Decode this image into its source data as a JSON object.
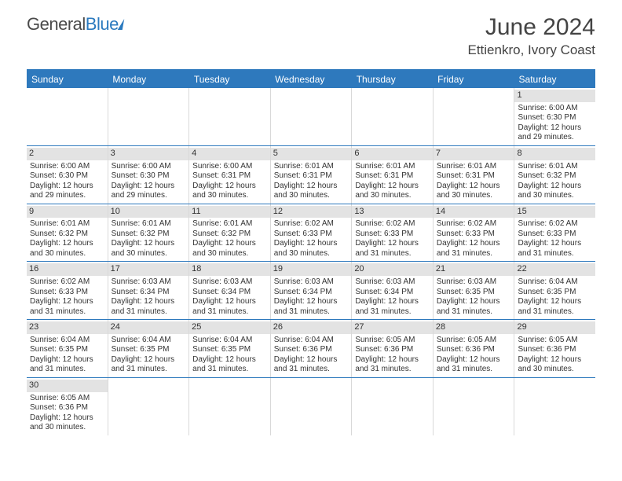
{
  "logo": {
    "text_a": "General",
    "text_b": "Blue"
  },
  "header": {
    "title": "June 2024",
    "location": "Ettienkro, Ivory Coast"
  },
  "colors": {
    "brand": "#2e79bd",
    "daynum_bg": "#e3e3e3",
    "text": "#333333"
  },
  "weekdays": [
    "Sunday",
    "Monday",
    "Tuesday",
    "Wednesday",
    "Thursday",
    "Friday",
    "Saturday"
  ],
  "weeks": [
    [
      null,
      null,
      null,
      null,
      null,
      null,
      {
        "n": "1",
        "sr": "Sunrise: 6:00 AM",
        "ss": "Sunset: 6:30 PM",
        "d1": "Daylight: 12 hours",
        "d2": "and 29 minutes."
      }
    ],
    [
      {
        "n": "2",
        "sr": "Sunrise: 6:00 AM",
        "ss": "Sunset: 6:30 PM",
        "d1": "Daylight: 12 hours",
        "d2": "and 29 minutes."
      },
      {
        "n": "3",
        "sr": "Sunrise: 6:00 AM",
        "ss": "Sunset: 6:30 PM",
        "d1": "Daylight: 12 hours",
        "d2": "and 29 minutes."
      },
      {
        "n": "4",
        "sr": "Sunrise: 6:00 AM",
        "ss": "Sunset: 6:31 PM",
        "d1": "Daylight: 12 hours",
        "d2": "and 30 minutes."
      },
      {
        "n": "5",
        "sr": "Sunrise: 6:01 AM",
        "ss": "Sunset: 6:31 PM",
        "d1": "Daylight: 12 hours",
        "d2": "and 30 minutes."
      },
      {
        "n": "6",
        "sr": "Sunrise: 6:01 AM",
        "ss": "Sunset: 6:31 PM",
        "d1": "Daylight: 12 hours",
        "d2": "and 30 minutes."
      },
      {
        "n": "7",
        "sr": "Sunrise: 6:01 AM",
        "ss": "Sunset: 6:31 PM",
        "d1": "Daylight: 12 hours",
        "d2": "and 30 minutes."
      },
      {
        "n": "8",
        "sr": "Sunrise: 6:01 AM",
        "ss": "Sunset: 6:32 PM",
        "d1": "Daylight: 12 hours",
        "d2": "and 30 minutes."
      }
    ],
    [
      {
        "n": "9",
        "sr": "Sunrise: 6:01 AM",
        "ss": "Sunset: 6:32 PM",
        "d1": "Daylight: 12 hours",
        "d2": "and 30 minutes."
      },
      {
        "n": "10",
        "sr": "Sunrise: 6:01 AM",
        "ss": "Sunset: 6:32 PM",
        "d1": "Daylight: 12 hours",
        "d2": "and 30 minutes."
      },
      {
        "n": "11",
        "sr": "Sunrise: 6:01 AM",
        "ss": "Sunset: 6:32 PM",
        "d1": "Daylight: 12 hours",
        "d2": "and 30 minutes."
      },
      {
        "n": "12",
        "sr": "Sunrise: 6:02 AM",
        "ss": "Sunset: 6:33 PM",
        "d1": "Daylight: 12 hours",
        "d2": "and 30 minutes."
      },
      {
        "n": "13",
        "sr": "Sunrise: 6:02 AM",
        "ss": "Sunset: 6:33 PM",
        "d1": "Daylight: 12 hours",
        "d2": "and 31 minutes."
      },
      {
        "n": "14",
        "sr": "Sunrise: 6:02 AM",
        "ss": "Sunset: 6:33 PM",
        "d1": "Daylight: 12 hours",
        "d2": "and 31 minutes."
      },
      {
        "n": "15",
        "sr": "Sunrise: 6:02 AM",
        "ss": "Sunset: 6:33 PM",
        "d1": "Daylight: 12 hours",
        "d2": "and 31 minutes."
      }
    ],
    [
      {
        "n": "16",
        "sr": "Sunrise: 6:02 AM",
        "ss": "Sunset: 6:33 PM",
        "d1": "Daylight: 12 hours",
        "d2": "and 31 minutes."
      },
      {
        "n": "17",
        "sr": "Sunrise: 6:03 AM",
        "ss": "Sunset: 6:34 PM",
        "d1": "Daylight: 12 hours",
        "d2": "and 31 minutes."
      },
      {
        "n": "18",
        "sr": "Sunrise: 6:03 AM",
        "ss": "Sunset: 6:34 PM",
        "d1": "Daylight: 12 hours",
        "d2": "and 31 minutes."
      },
      {
        "n": "19",
        "sr": "Sunrise: 6:03 AM",
        "ss": "Sunset: 6:34 PM",
        "d1": "Daylight: 12 hours",
        "d2": "and 31 minutes."
      },
      {
        "n": "20",
        "sr": "Sunrise: 6:03 AM",
        "ss": "Sunset: 6:34 PM",
        "d1": "Daylight: 12 hours",
        "d2": "and 31 minutes."
      },
      {
        "n": "21",
        "sr": "Sunrise: 6:03 AM",
        "ss": "Sunset: 6:35 PM",
        "d1": "Daylight: 12 hours",
        "d2": "and 31 minutes."
      },
      {
        "n": "22",
        "sr": "Sunrise: 6:04 AM",
        "ss": "Sunset: 6:35 PM",
        "d1": "Daylight: 12 hours",
        "d2": "and 31 minutes."
      }
    ],
    [
      {
        "n": "23",
        "sr": "Sunrise: 6:04 AM",
        "ss": "Sunset: 6:35 PM",
        "d1": "Daylight: 12 hours",
        "d2": "and 31 minutes."
      },
      {
        "n": "24",
        "sr": "Sunrise: 6:04 AM",
        "ss": "Sunset: 6:35 PM",
        "d1": "Daylight: 12 hours",
        "d2": "and 31 minutes."
      },
      {
        "n": "25",
        "sr": "Sunrise: 6:04 AM",
        "ss": "Sunset: 6:35 PM",
        "d1": "Daylight: 12 hours",
        "d2": "and 31 minutes."
      },
      {
        "n": "26",
        "sr": "Sunrise: 6:04 AM",
        "ss": "Sunset: 6:36 PM",
        "d1": "Daylight: 12 hours",
        "d2": "and 31 minutes."
      },
      {
        "n": "27",
        "sr": "Sunrise: 6:05 AM",
        "ss": "Sunset: 6:36 PM",
        "d1": "Daylight: 12 hours",
        "d2": "and 31 minutes."
      },
      {
        "n": "28",
        "sr": "Sunrise: 6:05 AM",
        "ss": "Sunset: 6:36 PM",
        "d1": "Daylight: 12 hours",
        "d2": "and 31 minutes."
      },
      {
        "n": "29",
        "sr": "Sunrise: 6:05 AM",
        "ss": "Sunset: 6:36 PM",
        "d1": "Daylight: 12 hours",
        "d2": "and 30 minutes."
      }
    ],
    [
      {
        "n": "30",
        "sr": "Sunrise: 6:05 AM",
        "ss": "Sunset: 6:36 PM",
        "d1": "Daylight: 12 hours",
        "d2": "and 30 minutes."
      },
      null,
      null,
      null,
      null,
      null,
      null
    ]
  ]
}
